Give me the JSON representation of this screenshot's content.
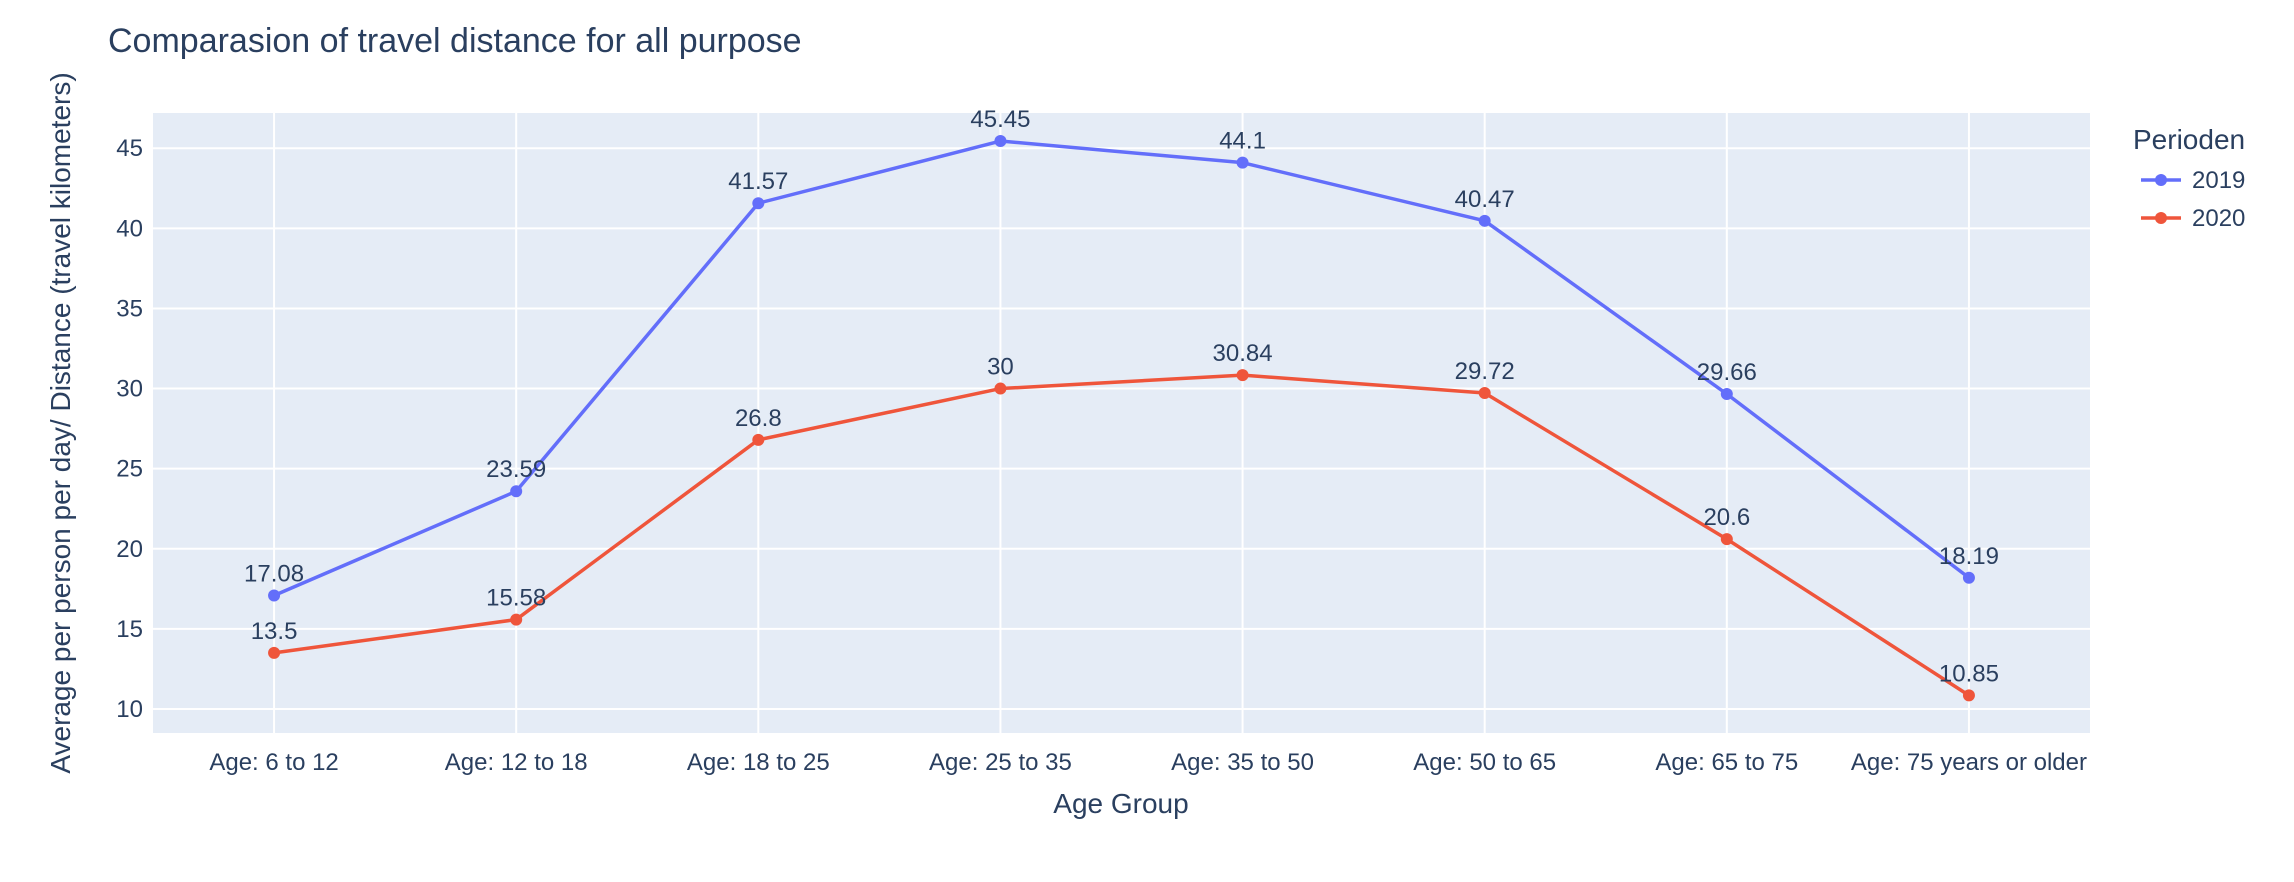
{
  "chart_data": {
    "type": "line",
    "title": "Comparasion of travel distance for all purpose",
    "xlabel": "Age Group",
    "ylabel": "Average per person per day/ Distance (travel kilometers)",
    "categories": [
      "Age: 6 to 12",
      "Age: 12 to 18",
      "Age: 18 to 25",
      "Age: 25 to 35",
      "Age: 35 to 50",
      "Age: 50 to 65",
      "Age: 65 to 75",
      "Age: 75 years or older"
    ],
    "series": [
      {
        "name": "2019",
        "color": "#636efa",
        "values": [
          17.08,
          23.59,
          41.57,
          45.45,
          44.1,
          40.47,
          29.66,
          18.19
        ]
      },
      {
        "name": "2020",
        "color": "#ef553b",
        "values": [
          13.5,
          15.58,
          26.8,
          30,
          30.84,
          29.72,
          20.6,
          10.85
        ]
      }
    ],
    "yticks": [
      10,
      15,
      20,
      25,
      30,
      35,
      40,
      45
    ],
    "ylim": [
      8.5,
      47.2
    ],
    "legend": {
      "title": "Perioden",
      "placement": "right"
    },
    "grid": true,
    "plot_background": "#e5ecf6"
  }
}
